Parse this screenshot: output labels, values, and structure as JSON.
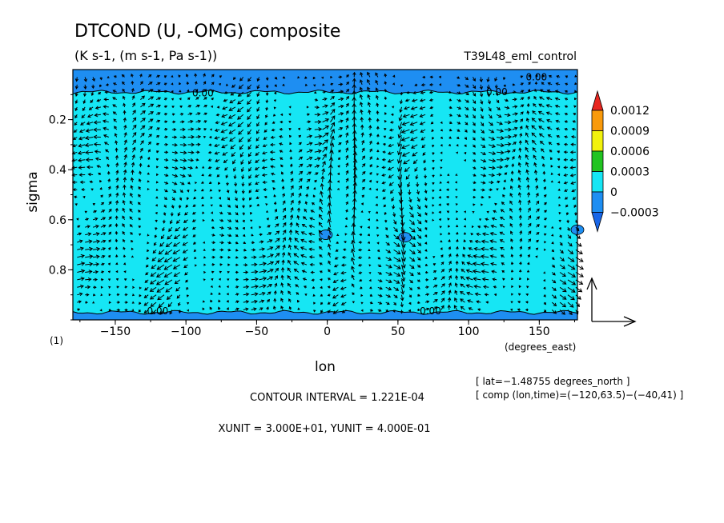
{
  "chart_data": {
    "type": "heatmap",
    "title": "DTCOND (U, -OMG) composite",
    "subtitle": "(K s-1, (m s-1, Pa s-1))",
    "run_label": "T39L48_eml_control",
    "xlabel": "lon",
    "x_unit_label": "(degrees_east)",
    "ylabel": "sigma",
    "x_range": [
      -180,
      177
    ],
    "y_range": [
      1.0,
      0.0
    ],
    "y_inverted": true,
    "x_ticks": [
      -150,
      -100,
      -50,
      0,
      50,
      100,
      150
    ],
    "x_tick_labels": [
      "−150",
      "−100",
      "−50",
      "0",
      "50",
      "100",
      "150"
    ],
    "y_ticks": [
      0.2,
      0.4,
      0.6,
      0.8
    ],
    "y_tick_labels": [
      "0.2",
      "0.4",
      "0.6",
      "0.8"
    ],
    "corner_label": "(1)",
    "colorbar": {
      "levels": [
        "0.0012",
        "0.0009",
        "0.0006",
        "0.0003",
        "0",
        "−0.0003"
      ],
      "colors": [
        "#e8261f",
        "#f99a0b",
        "#f2f20d",
        "#22c422",
        "#16e6f4",
        "#1e8ef2",
        "#1866e8"
      ]
    },
    "contour_labels": [
      "0.00",
      "0.00",
      "0.00",
      "0.00",
      "0.00"
    ],
    "field": {
      "background_color": "#16e6f4",
      "negative_color": "#1e8ef2",
      "negative_bands": [
        {
          "where": "top",
          "sigma_from": 0.0,
          "sigma_to": 0.09
        },
        {
          "where": "bottom",
          "sigma_from": 0.97,
          "sigma_to": 1.0
        }
      ],
      "negative_patches": [
        {
          "lon": -1,
          "sigma": 0.66
        },
        {
          "lon": 55,
          "sigma": 0.67
        },
        {
          "lon": 177,
          "sigma": 0.64
        }
      ],
      "strong_ascent_lon": [
        0,
        18
      ],
      "strong_descent_lon": [
        52
      ]
    },
    "footer": {
      "contour_interval": "CONTOUR INTERVAL = 1.221E-04",
      "units": "XUNIT = 3.000E+01, YUNIT = 4.000E-01",
      "lat_info": "[ lat=−1.48755 degrees_north ]",
      "comp_info": "[ comp (lon,time)=(−120,63.5)−(−40,41) ]"
    }
  }
}
